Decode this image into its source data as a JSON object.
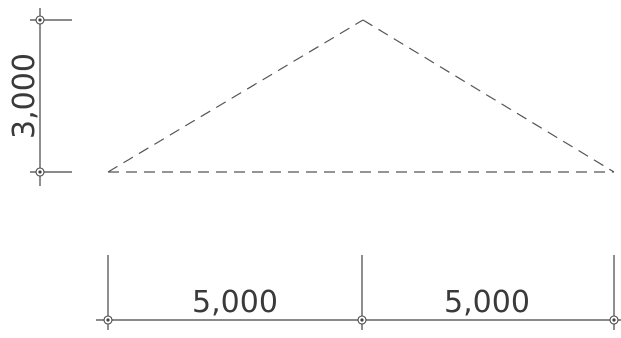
{
  "dimensions": {
    "height_label": "3,000",
    "span_left_label": "5,000",
    "span_right_label": "5,000"
  },
  "colors": {
    "line": "#444444",
    "text": "#3a3a3a",
    "background": "#ffffff"
  }
}
